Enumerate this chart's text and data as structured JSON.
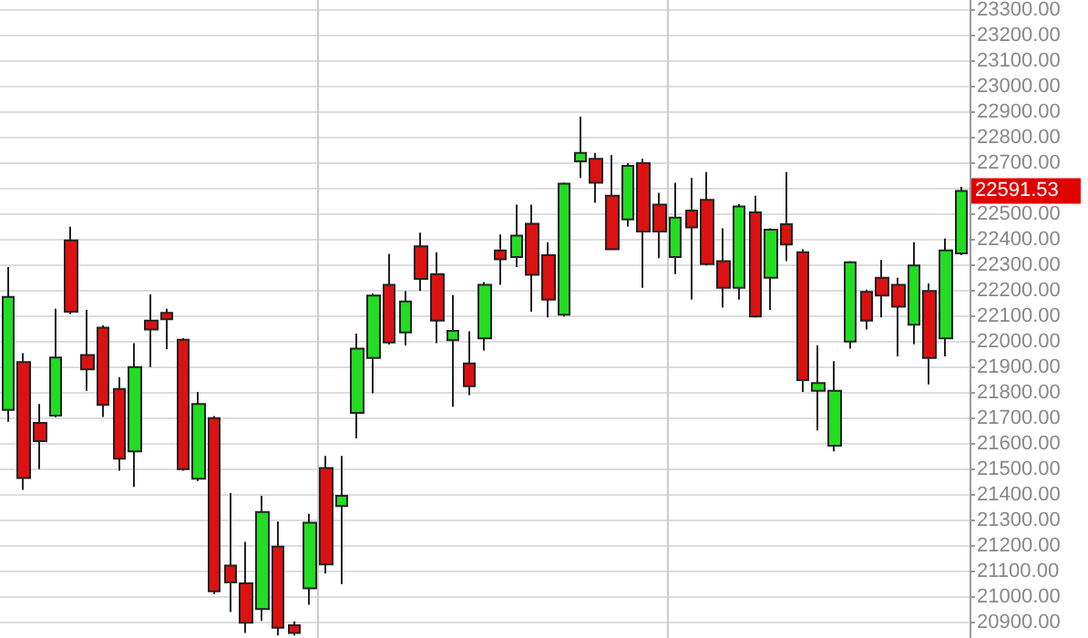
{
  "chart_data": {
    "type": "candlestick",
    "categories": [
      null,
      null,
      null,
      null,
      null,
      null,
      null,
      null,
      null,
      null,
      null,
      null,
      null,
      null,
      null,
      null,
      null,
      null,
      null,
      null,
      null,
      null,
      null,
      null,
      null,
      null,
      null,
      null,
      null,
      null,
      null,
      null,
      null,
      null,
      null,
      null,
      null,
      null,
      null,
      null,
      null,
      null,
      null,
      null,
      null,
      null,
      null,
      null,
      null,
      null,
      null,
      null,
      null,
      null,
      null,
      null,
      null,
      null,
      null,
      null,
      null
    ],
    "ohlc": [
      [
        21734,
        22294,
        21687,
        22177
      ],
      [
        21921,
        21956,
        21420,
        21467
      ],
      [
        21683,
        21757,
        21502,
        21611
      ],
      [
        21711,
        22130,
        21705,
        21939
      ],
      [
        22398,
        22452,
        22110,
        22119
      ],
      [
        21949,
        22126,
        21809,
        21893
      ],
      [
        22056,
        22065,
        21706,
        21753
      ],
      [
        21816,
        21862,
        21495,
        21543
      ],
      [
        21571,
        21995,
        21432,
        21902
      ],
      [
        22084,
        22186,
        21902,
        22049
      ],
      [
        22114,
        22130,
        21972,
        22089
      ],
      [
        22009,
        22015,
        21495,
        21502
      ],
      [
        21464,
        21804,
        21455,
        21757
      ],
      [
        21702,
        21710,
        21012,
        21023
      ],
      [
        21124,
        21408,
        20942,
        21058
      ],
      [
        21054,
        21217,
        20860,
        20900
      ],
      [
        20953,
        21397,
        20907,
        21334
      ],
      [
        21198,
        21296,
        20850,
        20880
      ],
      [
        20890,
        20905,
        20850,
        20860
      ],
      [
        21035,
        21327,
        20970,
        21292
      ],
      [
        21506,
        21553,
        21093,
        21128
      ],
      [
        21357,
        21553,
        21051,
        21397
      ],
      [
        21722,
        22033,
        21622,
        21974
      ],
      [
        21937,
        22190,
        21799,
        22182
      ],
      [
        22224,
        22345,
        21990,
        21998
      ],
      [
        22037,
        22200,
        21986,
        22159
      ],
      [
        22375,
        22428,
        22200,
        22247
      ],
      [
        22266,
        22352,
        21995,
        22084
      ],
      [
        22007,
        22184,
        21746,
        22044
      ],
      [
        21916,
        22042,
        21792,
        21827
      ],
      [
        22014,
        22235,
        21967,
        22224
      ],
      [
        22359,
        22421,
        22224,
        22324
      ],
      [
        22333,
        22538,
        22294,
        22417
      ],
      [
        22463,
        22538,
        22119,
        22263
      ],
      [
        22340,
        22391,
        22096,
        22166
      ],
      [
        22107,
        22625,
        22100,
        22620
      ],
      [
        22708,
        22883,
        22643,
        22741
      ],
      [
        22718,
        22741,
        22545,
        22624
      ],
      [
        22573,
        22732,
        22363,
        22363
      ],
      [
        22480,
        22701,
        22452,
        22690
      ],
      [
        22701,
        22718,
        22212,
        22433
      ],
      [
        22538,
        22585,
        22328,
        22433
      ],
      [
        22333,
        22624,
        22266,
        22487
      ],
      [
        22515,
        22643,
        22166,
        22449
      ],
      [
        22557,
        22666,
        22300,
        22305
      ],
      [
        22317,
        22445,
        22135,
        22212
      ],
      [
        22212,
        22540,
        22166,
        22531
      ],
      [
        22508,
        22573,
        22095,
        22100
      ],
      [
        22252,
        22445,
        22126,
        22440
      ],
      [
        22461,
        22666,
        22317,
        22382
      ],
      [
        22352,
        22363,
        21804,
        21851
      ],
      [
        21809,
        21986,
        21653,
        21839
      ],
      [
        21594,
        21925,
        21571,
        21809
      ],
      [
        22002,
        22317,
        21974,
        22312
      ],
      [
        22196,
        22205,
        22049,
        22084
      ],
      [
        22252,
        22321,
        22096,
        22182
      ],
      [
        22224,
        22252,
        21944,
        22138
      ],
      [
        22068,
        22391,
        21991,
        22300
      ],
      [
        22200,
        22229,
        21834,
        21937
      ],
      [
        22014,
        22405,
        21944,
        22359
      ],
      [
        22347,
        22608,
        22340,
        22591.53
      ]
    ],
    "colors": [
      "#22dd22",
      "#dd1111",
      "#dd1111",
      "#22dd22",
      "#dd1111",
      "#dd1111",
      "#dd1111",
      "#dd1111",
      "#22dd22",
      "#dd1111",
      "#dd1111",
      "#dd1111",
      "#22dd22",
      "#dd1111",
      "#dd1111",
      "#dd1111",
      "#22dd22",
      "#dd1111",
      "#dd1111",
      "#22dd22",
      "#dd1111",
      "#22dd22",
      "#22dd22",
      "#22dd22",
      "#dd1111",
      "#22dd22",
      "#dd1111",
      "#dd1111",
      "#22dd22",
      "#dd1111",
      "#22dd22",
      "#dd1111",
      "#22dd22",
      "#dd1111",
      "#dd1111",
      "#22dd22",
      "#22dd22",
      "#dd1111",
      "#dd1111",
      "#22dd22",
      "#dd1111",
      "#dd1111",
      "#22dd22",
      "#dd1111",
      "#dd1111",
      "#dd1111",
      "#22dd22",
      "#dd1111",
      "#22dd22",
      "#dd1111",
      "#dd1111",
      "#22dd22",
      "#22dd22",
      "#22dd22",
      "#dd1111",
      "#dd1111",
      "#dd1111",
      "#22dd22",
      "#dd1111",
      "#22dd22",
      "#22dd22"
    ],
    "ylim": [
      20840,
      23340
    ],
    "yticks": [
      {
        "value": 20900,
        "label": "20900.00"
      },
      {
        "value": 21000,
        "label": "21000.00"
      },
      {
        "value": 21100,
        "label": "21100.00"
      },
      {
        "value": 21200,
        "label": "21200.00"
      },
      {
        "value": 21300,
        "label": "21300.00"
      },
      {
        "value": 21400,
        "label": "21400.00"
      },
      {
        "value": 21500,
        "label": "21500.00"
      },
      {
        "value": 21600,
        "label": "21600.00"
      },
      {
        "value": 21700,
        "label": "21700.00"
      },
      {
        "value": 21800,
        "label": "21800.00"
      },
      {
        "value": 21900,
        "label": "21900.00"
      },
      {
        "value": 22000,
        "label": "22000.00"
      },
      {
        "value": 22100,
        "label": "22100.00"
      },
      {
        "value": 22200,
        "label": "22200.00"
      },
      {
        "value": 22300,
        "label": "22300.00"
      },
      {
        "value": 22400,
        "label": "22400.00"
      },
      {
        "value": 22500,
        "label": "22500.00"
      },
      {
        "value": 22600,
        "label": null
      },
      {
        "value": 22700,
        "label": "22700.00"
      },
      {
        "value": 22800,
        "label": "22800.00"
      },
      {
        "value": 22900,
        "label": "22900.00"
      },
      {
        "value": 23000,
        "label": "23000.00"
      },
      {
        "value": 23100,
        "label": "23100.00"
      },
      {
        "value": 23200,
        "label": "23200.00"
      },
      {
        "value": 23300,
        "label": "23300.00"
      }
    ],
    "grid": "y",
    "tick_labels": "y",
    "annotations": [
      "22591.53"
    ]
  }
}
